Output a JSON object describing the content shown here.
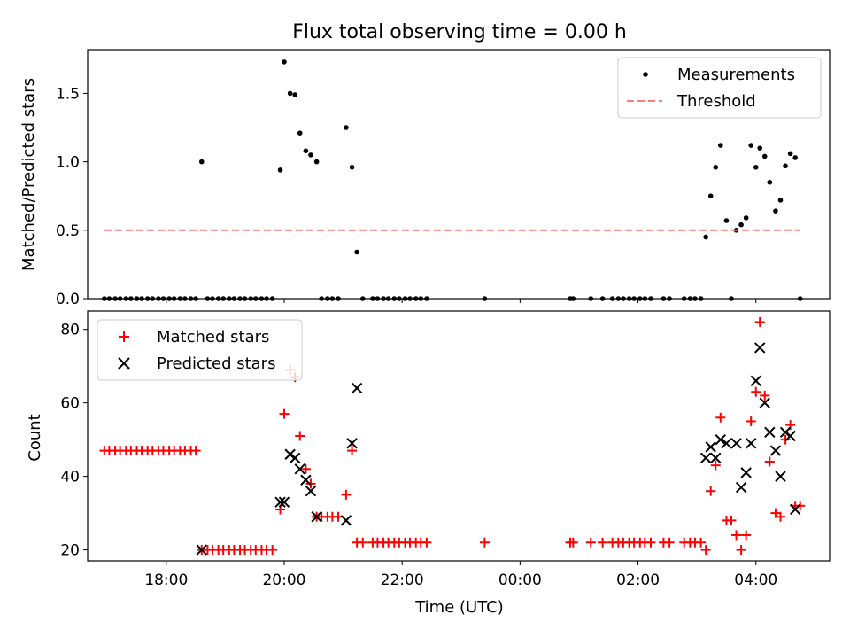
{
  "figure": {
    "title": "Flux total observing time = 0.00 h",
    "xlabel": "Time (UTC)"
  },
  "chart_data": [
    {
      "type": "scatter",
      "ylabel": "Matched/Predicted stars",
      "xlim": [
        "16:40",
        "05:15"
      ],
      "ylim": [
        0,
        1.82
      ],
      "yticks": [
        0.0,
        0.5,
        1.0,
        1.5
      ],
      "ytick_labels": [
        "0.0",
        "0.5",
        "1.0",
        "1.5"
      ],
      "xticks": [
        "18:00",
        "20:00",
        "22:00",
        "00:00",
        "02:00",
        "04:00"
      ],
      "xtick_labels_shown": false,
      "legend_position": "top-right",
      "series": [
        {
          "name": "Measurements",
          "marker": "dot",
          "color": "#000000",
          "points": [
            [
              "16:57",
              0
            ],
            [
              "17:02",
              0
            ],
            [
              "17:08",
              0
            ],
            [
              "17:13",
              0
            ],
            [
              "17:19",
              0
            ],
            [
              "17:24",
              0
            ],
            [
              "17:30",
              0
            ],
            [
              "17:35",
              0
            ],
            [
              "17:41",
              0
            ],
            [
              "17:46",
              0
            ],
            [
              "17:52",
              0
            ],
            [
              "17:57",
              0
            ],
            [
              "18:03",
              0
            ],
            [
              "18:08",
              0
            ],
            [
              "18:14",
              0
            ],
            [
              "18:19",
              0
            ],
            [
              "18:25",
              0
            ],
            [
              "18:30",
              0
            ],
            [
              "18:36",
              1.0
            ],
            [
              "18:42",
              0
            ],
            [
              "18:47",
              0
            ],
            [
              "18:53",
              0
            ],
            [
              "18:58",
              0
            ],
            [
              "19:04",
              0
            ],
            [
              "19:09",
              0
            ],
            [
              "19:15",
              0
            ],
            [
              "19:20",
              0
            ],
            [
              "19:26",
              0
            ],
            [
              "19:31",
              0
            ],
            [
              "19:37",
              0
            ],
            [
              "19:42",
              0
            ],
            [
              "19:48",
              0
            ],
            [
              "19:56",
              0.94
            ],
            [
              "20:00",
              1.73
            ],
            [
              "20:06",
              1.5
            ],
            [
              "20:11",
              1.49
            ],
            [
              "20:16",
              1.21
            ],
            [
              "20:22",
              1.08
            ],
            [
              "20:27",
              1.05
            ],
            [
              "20:33",
              1.0
            ],
            [
              "20:38",
              0
            ],
            [
              "20:44",
              0
            ],
            [
              "20:49",
              0
            ],
            [
              "20:55",
              0
            ],
            [
              "21:03",
              1.25
            ],
            [
              "21:09",
              0.96
            ],
            [
              "21:14",
              0.34
            ],
            [
              "21:20",
              0
            ],
            [
              "21:30",
              0
            ],
            [
              "21:35",
              0
            ],
            [
              "21:41",
              0
            ],
            [
              "21:46",
              0
            ],
            [
              "21:52",
              0
            ],
            [
              "21:57",
              0
            ],
            [
              "22:03",
              0
            ],
            [
              "22:08",
              0
            ],
            [
              "22:14",
              0
            ],
            [
              "22:19",
              0
            ],
            [
              "22:25",
              0
            ],
            [
              "23:24",
              0
            ],
            [
              "00:51",
              0
            ],
            [
              "00:54",
              0
            ],
            [
              "01:12",
              0
            ],
            [
              "01:24",
              0
            ],
            [
              "01:34",
              0
            ],
            [
              "01:40",
              0
            ],
            [
              "01:45",
              0
            ],
            [
              "01:51",
              0
            ],
            [
              "01:56",
              0
            ],
            [
              "02:02",
              0
            ],
            [
              "02:07",
              0
            ],
            [
              "02:13",
              0
            ],
            [
              "02:26",
              0
            ],
            [
              "02:32",
              0
            ],
            [
              "02:47",
              0
            ],
            [
              "02:53",
              0
            ],
            [
              "02:58",
              0
            ],
            [
              "03:04",
              0
            ],
            [
              "03:09",
              0.45
            ],
            [
              "03:14",
              0.75
            ],
            [
              "03:19",
              0.96
            ],
            [
              "03:24",
              1.12
            ],
            [
              "03:30",
              0.57
            ],
            [
              "03:35",
              0
            ],
            [
              "03:40",
              0.5
            ],
            [
              "03:45",
              0.54
            ],
            [
              "03:50",
              0.59
            ],
            [
              "03:55",
              1.12
            ],
            [
              "04:00",
              0.96
            ],
            [
              "04:04",
              1.1
            ],
            [
              "04:09",
              1.04
            ],
            [
              "04:14",
              0.85
            ],
            [
              "04:20",
              0.64
            ],
            [
              "04:25",
              0.72
            ],
            [
              "04:30",
              0.97
            ],
            [
              "04:35",
              1.06
            ],
            [
              "04:40",
              1.03
            ],
            [
              "04:45",
              0
            ]
          ]
        },
        {
          "name": "Threshold",
          "style": "dashed",
          "color": "#ff7a7a",
          "x": [
            "16:57",
            "04:45"
          ],
          "y": [
            0.5,
            0.5
          ]
        }
      ]
    },
    {
      "type": "scatter",
      "ylabel": "Count",
      "xlabel": "Time (UTC)",
      "xlim": [
        "16:40",
        "05:15"
      ],
      "ylim": [
        17,
        85
      ],
      "yticks": [
        20,
        40,
        60,
        80
      ],
      "ytick_labels": [
        "20",
        "40",
        "60",
        "80"
      ],
      "xticks": [
        "18:00",
        "20:00",
        "22:00",
        "00:00",
        "02:00",
        "04:00"
      ],
      "xtick_labels": [
        "18:00",
        "20:00",
        "22:00",
        "00:00",
        "02:00",
        "04:00"
      ],
      "legend_position": "top-left",
      "series": [
        {
          "name": "Matched stars",
          "marker": "plus",
          "color": "#ff0000",
          "points": [
            [
              "16:57",
              47
            ],
            [
              "17:02",
              47
            ],
            [
              "17:08",
              47
            ],
            [
              "17:13",
              47
            ],
            [
              "17:19",
              47
            ],
            [
              "17:24",
              47
            ],
            [
              "17:30",
              47
            ],
            [
              "17:35",
              47
            ],
            [
              "17:41",
              47
            ],
            [
              "17:46",
              47
            ],
            [
              "17:52",
              47
            ],
            [
              "17:57",
              47
            ],
            [
              "18:03",
              47
            ],
            [
              "18:08",
              47
            ],
            [
              "18:14",
              47
            ],
            [
              "18:19",
              47
            ],
            [
              "18:25",
              47
            ],
            [
              "18:30",
              47
            ],
            [
              "18:36",
              20
            ],
            [
              "18:42",
              20
            ],
            [
              "18:47",
              20
            ],
            [
              "18:53",
              20
            ],
            [
              "18:58",
              20
            ],
            [
              "19:04",
              20
            ],
            [
              "19:09",
              20
            ],
            [
              "19:15",
              20
            ],
            [
              "19:20",
              20
            ],
            [
              "19:26",
              20
            ],
            [
              "19:31",
              20
            ],
            [
              "19:37",
              20
            ],
            [
              "19:42",
              20
            ],
            [
              "19:48",
              20
            ],
            [
              "19:56",
              31
            ],
            [
              "20:00",
              57
            ],
            [
              "20:06",
              69
            ],
            [
              "20:11",
              67
            ],
            [
              "20:16",
              51
            ],
            [
              "20:22",
              42
            ],
            [
              "20:27",
              38
            ],
            [
              "20:33",
              29
            ],
            [
              "20:38",
              29
            ],
            [
              "20:44",
              29
            ],
            [
              "20:49",
              29
            ],
            [
              "20:55",
              29
            ],
            [
              "21:03",
              35
            ],
            [
              "21:09",
              47
            ],
            [
              "21:14",
              22
            ],
            [
              "21:20",
              22
            ],
            [
              "21:30",
              22
            ],
            [
              "21:35",
              22
            ],
            [
              "21:41",
              22
            ],
            [
              "21:46",
              22
            ],
            [
              "21:52",
              22
            ],
            [
              "21:57",
              22
            ],
            [
              "22:03",
              22
            ],
            [
              "22:08",
              22
            ],
            [
              "22:14",
              22
            ],
            [
              "22:19",
              22
            ],
            [
              "22:25",
              22
            ],
            [
              "23:24",
              22
            ],
            [
              "00:51",
              22
            ],
            [
              "00:54",
              22
            ],
            [
              "01:12",
              22
            ],
            [
              "01:24",
              22
            ],
            [
              "01:34",
              22
            ],
            [
              "01:40",
              22
            ],
            [
              "01:45",
              22
            ],
            [
              "01:51",
              22
            ],
            [
              "01:56",
              22
            ],
            [
              "02:02",
              22
            ],
            [
              "02:07",
              22
            ],
            [
              "02:13",
              22
            ],
            [
              "02:26",
              22
            ],
            [
              "02:32",
              22
            ],
            [
              "02:47",
              22
            ],
            [
              "02:53",
              22
            ],
            [
              "02:58",
              22
            ],
            [
              "03:04",
              22
            ],
            [
              "03:09",
              20
            ],
            [
              "03:14",
              36
            ],
            [
              "03:19",
              43
            ],
            [
              "03:24",
              56
            ],
            [
              "03:30",
              28
            ],
            [
              "03:35",
              28
            ],
            [
              "03:40",
              24
            ],
            [
              "03:45",
              20
            ],
            [
              "03:50",
              24
            ],
            [
              "03:55",
              55
            ],
            [
              "04:00",
              63
            ],
            [
              "04:04",
              82
            ],
            [
              "04:09",
              62
            ],
            [
              "04:14",
              44
            ],
            [
              "04:20",
              30
            ],
            [
              "04:25",
              29
            ],
            [
              "04:30",
              50
            ],
            [
              "04:35",
              54
            ],
            [
              "04:40",
              32
            ],
            [
              "04:45",
              32
            ]
          ]
        },
        {
          "name": "Predicted stars",
          "marker": "x",
          "color": "#000000",
          "points": [
            [
              "18:36",
              20
            ],
            [
              "19:56",
              33
            ],
            [
              "20:00",
              33
            ],
            [
              "20:06",
              46
            ],
            [
              "20:11",
              45
            ],
            [
              "20:16",
              42
            ],
            [
              "20:22",
              39
            ],
            [
              "20:27",
              36
            ],
            [
              "20:33",
              29
            ],
            [
              "21:03",
              28
            ],
            [
              "21:09",
              49
            ],
            [
              "21:14",
              64
            ],
            [
              "03:09",
              45
            ],
            [
              "03:14",
              48
            ],
            [
              "03:19",
              45
            ],
            [
              "03:24",
              50
            ],
            [
              "03:30",
              49
            ],
            [
              "03:40",
              49
            ],
            [
              "03:45",
              37
            ],
            [
              "03:50",
              41
            ],
            [
              "03:55",
              49
            ],
            [
              "04:00",
              66
            ],
            [
              "04:04",
              75
            ],
            [
              "04:09",
              60
            ],
            [
              "04:14",
              52
            ],
            [
              "04:20",
              47
            ],
            [
              "04:25",
              40
            ],
            [
              "04:30",
              52
            ],
            [
              "04:35",
              51
            ],
            [
              "04:40",
              31
            ]
          ]
        }
      ]
    }
  ]
}
